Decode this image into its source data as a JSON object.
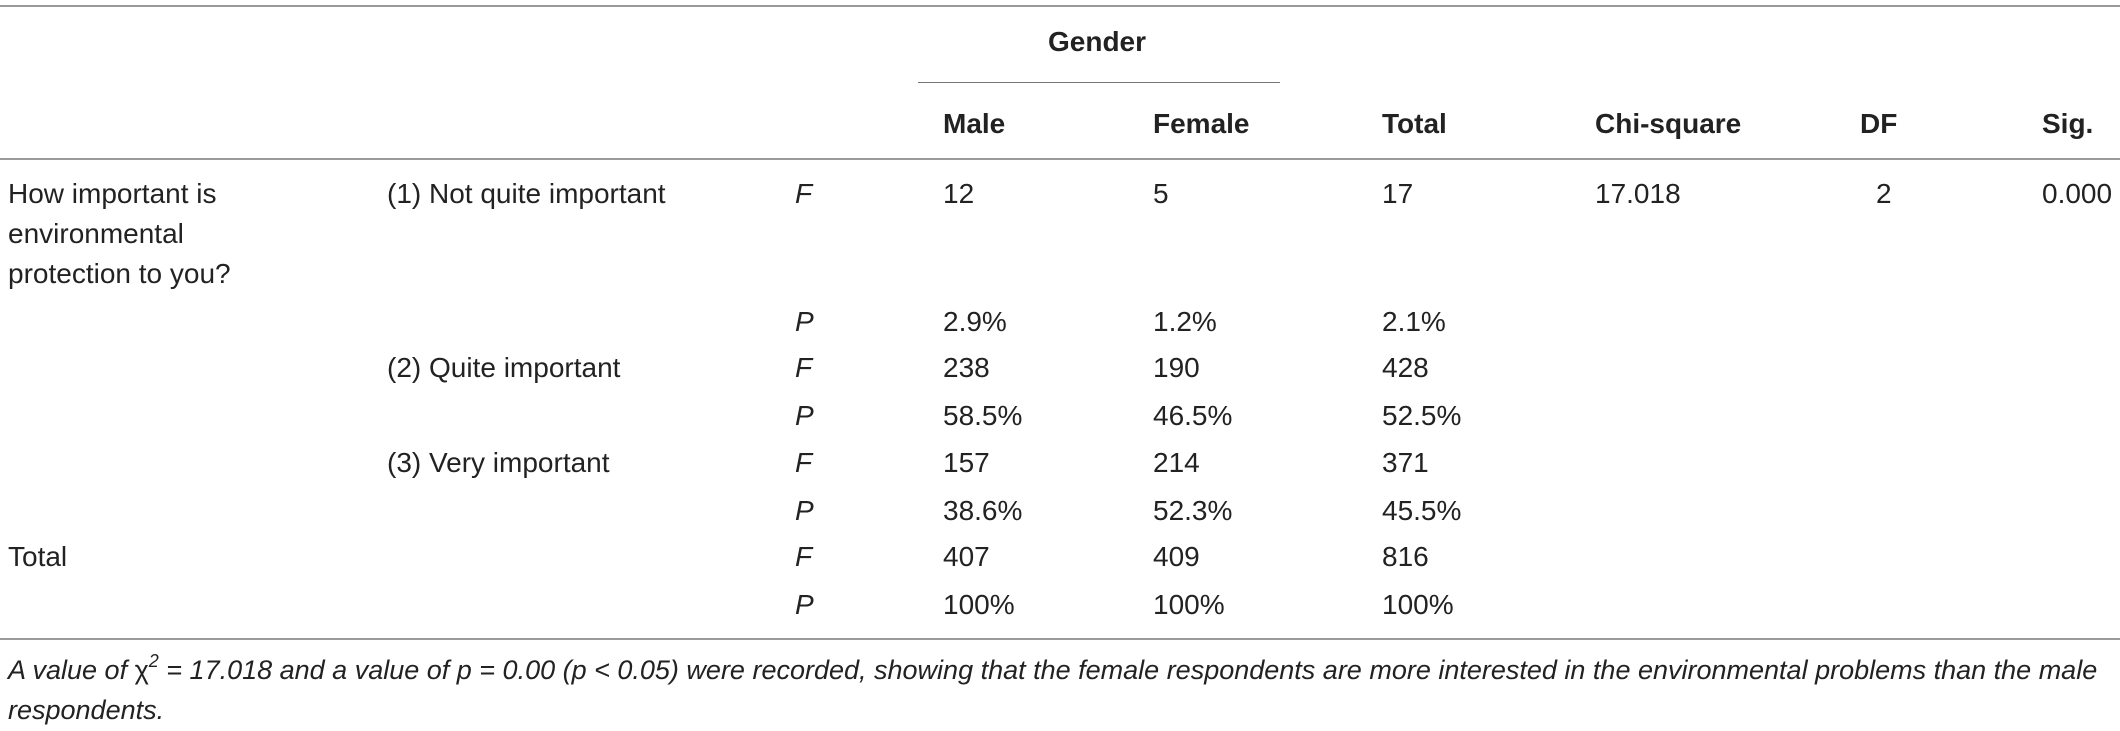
{
  "table": {
    "group_header": "Gender",
    "headers": {
      "male": "Male",
      "female": "Female",
      "total": "Total",
      "chi_square": "Chi-square",
      "df": "DF",
      "sig": "Sig."
    },
    "question_lines": [
      "How important is",
      "environmental",
      "protection to you?"
    ],
    "chi_square_value": "17.018",
    "df_value": "2",
    "sig_value": "0.000",
    "rows": [
      {
        "option": "(1) Not quite important",
        "measure": "F",
        "male": "12",
        "female": "5",
        "total": "17"
      },
      {
        "option": "",
        "measure": "P",
        "male": "2.9%",
        "female": "1.2%",
        "total": "2.1%"
      },
      {
        "option": "(2) Quite important",
        "measure": "F",
        "male": "238",
        "female": "190",
        "total": "428"
      },
      {
        "option": "",
        "measure": "P",
        "male": "58.5%",
        "female": "46.5%",
        "total": "52.5%"
      },
      {
        "option": "(3) Very important",
        "measure": "F",
        "male": "157",
        "female": "214",
        "total": "371"
      },
      {
        "option": "",
        "measure": "P",
        "male": "38.6%",
        "female": "52.3%",
        "total": "45.5%"
      },
      {
        "label": "Total",
        "option": "",
        "measure": "F",
        "male": "407",
        "female": "409",
        "total": "816"
      },
      {
        "option": "",
        "measure": "P",
        "male": "100%",
        "female": "100%",
        "total": "100%"
      }
    ]
  },
  "footnote": {
    "part1": "A value of ",
    "chi_symbol": "χ",
    "superscript": "2",
    "part2": " = 17.018 and a value of p = 0.00 (p < 0.05) were recorded, showing that the female respondents are more interested in the environmental problems than the male respondents."
  }
}
